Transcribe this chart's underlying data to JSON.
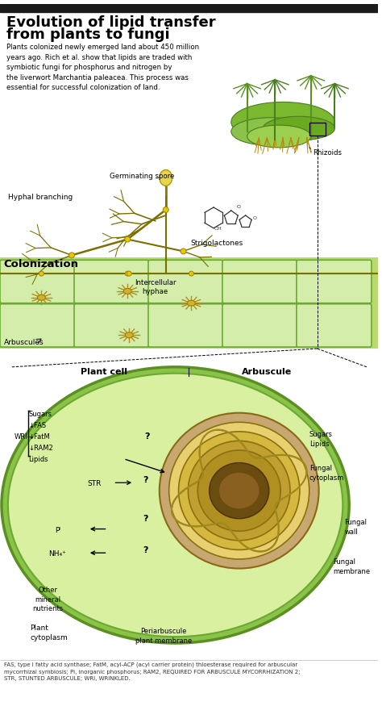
{
  "title_line1": "Evolution of lipid transfer",
  "title_line2": "from plants to fungi",
  "label_germinating": "Germinating spore",
  "label_hyphal": "Hyphal branching",
  "label_rhizoids": "Rhizoids",
  "label_strigolactones": "Strigolactones",
  "label_colonization": "Colonization",
  "label_intercellular": "Intercellular\nhyphae",
  "label_arbuscules": "Arbuscules",
  "label_plant_cell": "Plant cell",
  "label_arbuscule": "Arbuscule",
  "label_sugars_left": "Sugars",
  "label_FAS": "↓FAS",
  "label_FatM": "↓FatM",
  "label_RAM2": "↓RAM2",
  "label_lipids_left": "Lipids",
  "label_WRI": "WRI—",
  "label_STR": "STR",
  "label_Pi": "Pᴵ",
  "label_NH4": "NH₄⁺",
  "label_other_mineral": "Other\nmineral\nnutrients",
  "label_sugars_right": "Sugars\nLipids",
  "label_fungal_cytoplasm": "Fungal\ncytoplasm",
  "label_fungal_wall": "Fungal\nwall",
  "label_fungal_membrane": "Fungal\nmembrane",
  "label_plant_cytoplasm": "Plant\ncytoplasm",
  "label_peri": "Periarbuscule\nplant membrane",
  "footer": "FAS, type I fatty acid synthase; FatM, acyl-ACP (acyl carrier protein) thioesterase required for arbuscular\nmycorrhizal symbiosis; Pi, inorganic phosphorus; RAM2, REQUIRED FOR ARBUSCULE MYCORRHIZATION 2;\nSTR, STUNTED ARBUSCULE; WRI, WRINKLED.",
  "bg_color": "#ffffff",
  "header_bg": "#1a1a1a",
  "green_light": "#c8e6a0",
  "green_medium": "#8bc34a",
  "green_dark": "#4a7c20",
  "cell_fill": "#d4edaa",
  "cell_border": "#6aaa30",
  "tan_fill": "#d4b483",
  "olive_line": "#8b8000",
  "yellow_spore": "#e8d44d",
  "arbuscule_fill": "#c8a060"
}
